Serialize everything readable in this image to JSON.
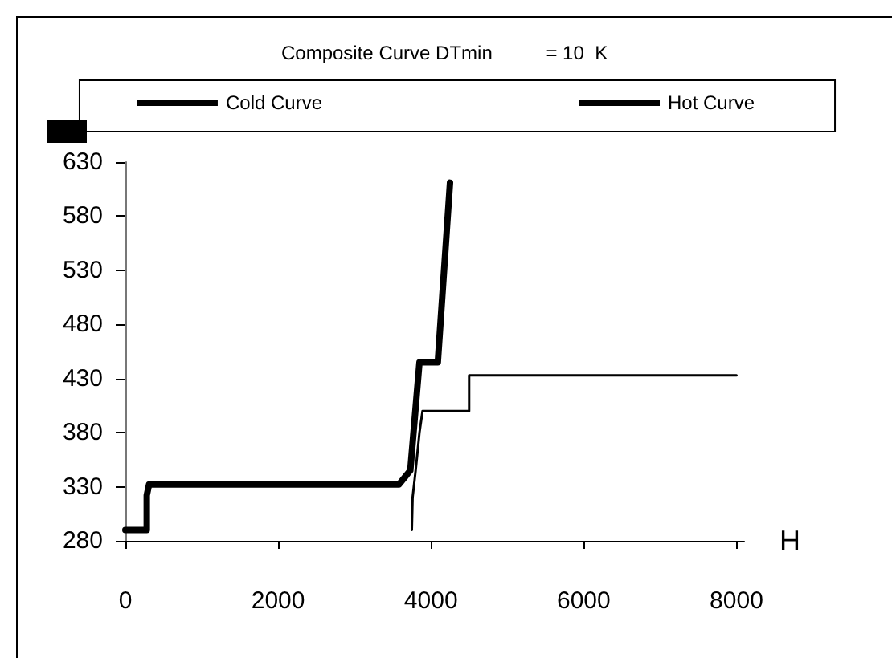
{
  "chart_data": {
    "type": "line",
    "title": "Composite Curve DTmin          = 10  K",
    "xlabel": "H",
    "xlim": [
      0,
      8100
    ],
    "xticks": [
      0,
      2000,
      4000,
      6000,
      8000
    ],
    "ylim": [
      280,
      630
    ],
    "yticks": [
      280,
      330,
      380,
      430,
      480,
      530,
      580,
      630
    ],
    "grid": false,
    "legend": "top",
    "marker": "none",
    "line_style": "solid",
    "series": [
      {
        "name": "Cold Curve",
        "color": "#000000",
        "x": [
          3750,
          3760,
          3800,
          3850,
          3890,
          4500,
          4500,
          8000
        ],
        "values": [
          290,
          320,
          345,
          380,
          400,
          400,
          433,
          433
        ]
      },
      {
        "name": "Hot Curve",
        "color": "#000000",
        "x": [
          0,
          280,
          280,
          310,
          3580,
          3730,
          3850,
          4090,
          4250
        ],
        "values": [
          290,
          290,
          322,
          332,
          332,
          345,
          445,
          445,
          611
        ]
      }
    ]
  }
}
